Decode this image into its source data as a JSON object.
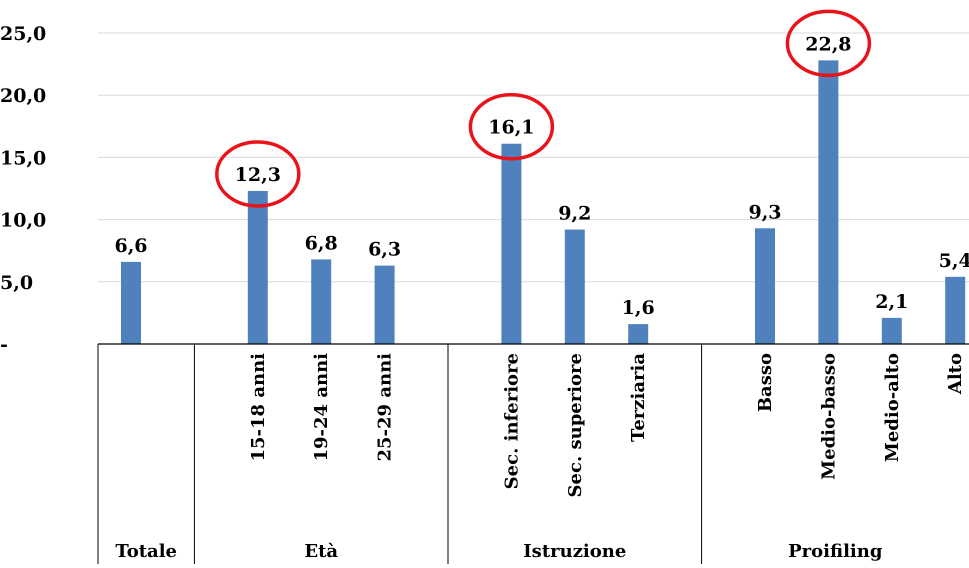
{
  "chart_data": {
    "type": "bar",
    "title": "",
    "xlabel": "",
    "ylabel": "",
    "ylim": [
      0,
      25
    ],
    "yticks": [
      {
        "value": 0,
        "label": "-"
      },
      {
        "value": 5,
        "label": "5,0"
      },
      {
        "value": 10,
        "label": "10,0"
      },
      {
        "value": 15,
        "label": "15,0"
      },
      {
        "value": 20,
        "label": "20,0"
      },
      {
        "value": 25,
        "label": "25,0"
      }
    ],
    "grid": true,
    "bar_color": "#4f81bd",
    "highlight_color": "#e8131b",
    "groups": [
      {
        "label": "Totale",
        "categories": [
          {
            "label": "",
            "value": 6.6,
            "value_label": "6,6",
            "highlight": false
          }
        ]
      },
      {
        "label": "Età",
        "categories": [
          {
            "label": "15-18 anni",
            "value": 12.3,
            "value_label": "12,3",
            "highlight": true
          },
          {
            "label": "19-24 anni",
            "value": 6.8,
            "value_label": "6,8",
            "highlight": false
          },
          {
            "label": "25-29 anni",
            "value": 6.3,
            "value_label": "6,3",
            "highlight": false
          }
        ]
      },
      {
        "label": "Istruzione",
        "categories": [
          {
            "label": "Sec. inferiore",
            "value": 16.1,
            "value_label": "16,1",
            "highlight": true
          },
          {
            "label": "Sec. superiore",
            "value": 9.2,
            "value_label": "9,2",
            "highlight": false
          },
          {
            "label": "Terziaria",
            "value": 1.6,
            "value_label": "1,6",
            "highlight": false
          }
        ]
      },
      {
        "label": "Proifiling",
        "categories": [
          {
            "label": "Basso",
            "value": 9.3,
            "value_label": "9,3",
            "highlight": false
          },
          {
            "label": "Medio-basso",
            "value": 22.8,
            "value_label": "22,8",
            "highlight": true
          },
          {
            "label": "Medio-alto",
            "value": 2.1,
            "value_label": "2,1",
            "highlight": false
          },
          {
            "label": "Alto",
            "value": 5.4,
            "value_label": "5,4",
            "highlight": false
          }
        ]
      }
    ]
  }
}
